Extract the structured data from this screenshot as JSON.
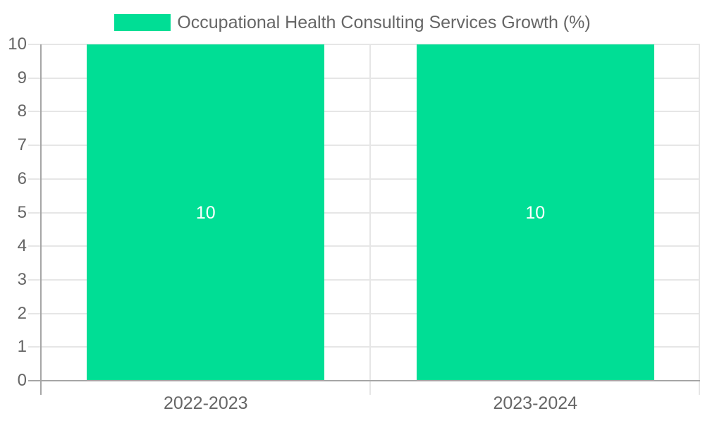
{
  "legend": {
    "position": "top-center",
    "swatch_shape": "rect"
  },
  "chart_data": {
    "type": "bar",
    "title": "",
    "xlabel": "",
    "ylabel": "",
    "categories": [
      "2022-2023",
      "2023-2024"
    ],
    "series": [
      {
        "name": "Occupational Health Consulting Services Growth (%)",
        "values": [
          10,
          10
        ],
        "data_labels": [
          "10",
          "10"
        ],
        "color": "#00de95"
      }
    ],
    "ylim": [
      0,
      10
    ],
    "ytick_step": 1,
    "yticks": [
      0,
      1,
      2,
      3,
      4,
      5,
      6,
      7,
      8,
      9,
      10
    ],
    "grid": true,
    "legend_position": "top-center"
  },
  "colors": {
    "background": "#ffffff",
    "bar": "#00de95",
    "grid_light": "#e6e6e6",
    "axis_dark": "#a6a6a6",
    "tick_label": "#666666",
    "legend_label": "#666666",
    "bar_value_label": "#ffffff"
  }
}
